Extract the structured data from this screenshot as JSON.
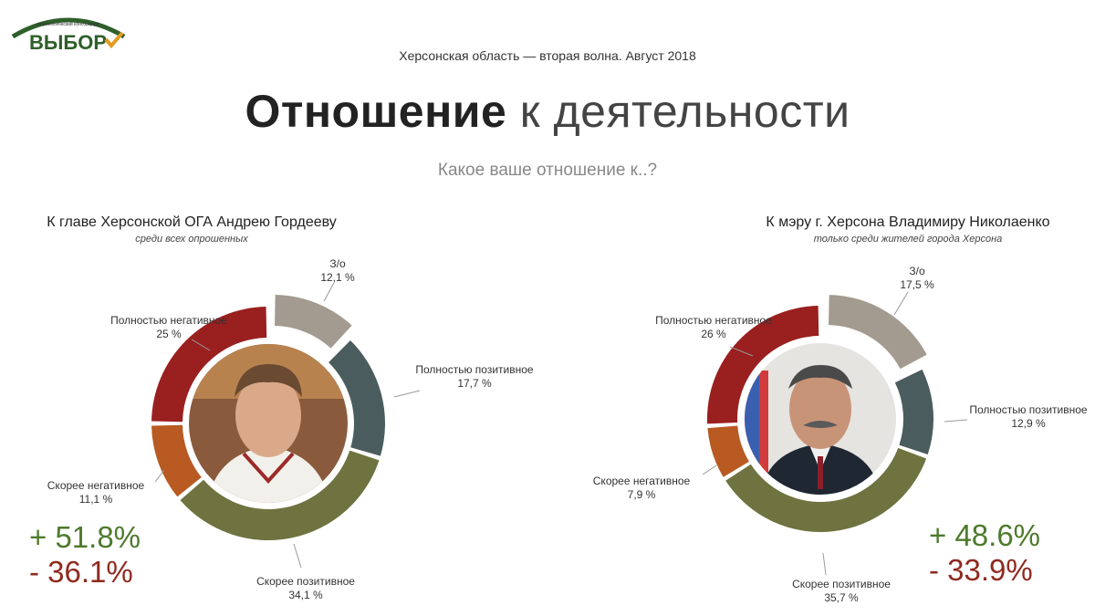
{
  "header": {
    "logo_text": "ВЫБОР",
    "logo_tagline": "социологический консорциум",
    "subtitle": "Херсонская область — вторая волна. Август 2018",
    "title_bold": "Отношение",
    "title_light": "к деятельности",
    "question": "Какое ваше отношение к..?"
  },
  "colors": {
    "no_answer": "#a39b8f",
    "full_positive": "#4a5c5e",
    "rather_positive": "#6e7340",
    "rather_negative": "#b85a22",
    "full_negative": "#9a1f1f"
  },
  "chart_data": [
    {
      "type": "pie",
      "title": "К главе Херсонской ОГА Андрею Гордееву",
      "subtitle": "среди всех опрошенных",
      "slices": [
        {
          "label": "З/о",
          "value": 12.1,
          "display": "12,1 %",
          "color": "#a39b8f"
        },
        {
          "label": "Полностью позитивное",
          "value": 17.7,
          "display": "17,7 %",
          "color": "#4a5c5e"
        },
        {
          "label": "Скорее позитивное",
          "value": 34.1,
          "display": "34,1 %",
          "color": "#6e7340"
        },
        {
          "label": "Скорее негативное",
          "value": 11.1,
          "display": "11,1 %",
          "color": "#b85a22"
        },
        {
          "label": "Полностью негативное",
          "value": 25,
          "display": "25 %",
          "color": "#9a1f1f"
        }
      ],
      "summary_positive": "+  51.8%",
      "summary_negative": "- 36.1%"
    },
    {
      "type": "pie",
      "title": "К мэру г. Херсона Владимиру Николаенко",
      "subtitle": "только среди жителей города Херсона",
      "slices": [
        {
          "label": "З/о",
          "value": 17.5,
          "display": "17,5 %",
          "color": "#a39b8f"
        },
        {
          "label": "Полностью позитивное",
          "value": 12.9,
          "display": "12,9 %",
          "color": "#4a5c5e"
        },
        {
          "label": "Скорее позитивное",
          "value": 35.7,
          "display": "35,7 %",
          "color": "#6e7340"
        },
        {
          "label": "Скорее негативное",
          "value": 7.9,
          "display": "7,9 %",
          "color": "#b85a22"
        },
        {
          "label": "Полностью негативное",
          "value": 26,
          "display": "26 %",
          "color": "#9a1f1f"
        }
      ],
      "summary_positive": "+ 48.6%",
      "summary_negative": "- 33.9%"
    }
  ]
}
